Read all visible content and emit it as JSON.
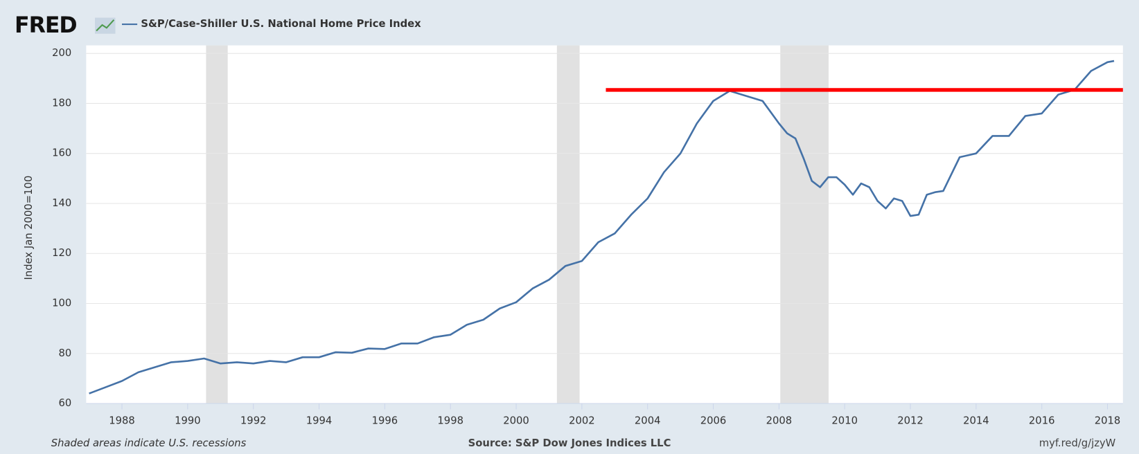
{
  "chart_data": {
    "type": "line",
    "logo": "FRED",
    "y_label": "Index Jan 2000=100",
    "footer_left": "Shaded areas indicate U.S. recessions",
    "source": "Source: S&P Dow Jones Indices LLC",
    "link": "myf.red/g/jzyW",
    "xlim": [
      1986.91,
      2018.47
    ],
    "xticks": [
      1988,
      1990,
      1992,
      1994,
      1996,
      1998,
      2000,
      2002,
      2004,
      2006,
      2008,
      2010,
      2012,
      2014,
      2016,
      2018
    ],
    "ylim": [
      60,
      200
    ],
    "yticks": [
      60,
      80,
      100,
      120,
      140,
      160,
      180,
      200
    ],
    "grid": true,
    "recession_color": "#e1e1e1",
    "recessions": [
      {
        "start": 1990.56,
        "end": 1991.22
      },
      {
        "start": 2001.24,
        "end": 2001.93
      },
      {
        "start": 2008.04,
        "end": 2009.51
      }
    ],
    "reference_line": {
      "value": 185.4,
      "x_start": 2002.73,
      "x_end": 2018.47,
      "color": "#ff0000"
    },
    "series": [
      {
        "name": "S&P/Case-Shiller U.S. National Home Price Index",
        "color": "#4572a7",
        "x": [
          1987.0,
          1987.5,
          1988.0,
          1988.5,
          1989.0,
          1989.5,
          1990.0,
          1990.5,
          1991.0,
          1991.5,
          1992.0,
          1992.5,
          1993.0,
          1993.5,
          1994.0,
          1994.5,
          1995.0,
          1995.5,
          1996.0,
          1996.5,
          1997.0,
          1997.5,
          1998.0,
          1998.5,
          1999.0,
          1999.5,
          2000.0,
          2000.5,
          2001.0,
          2001.5,
          2002.0,
          2002.5,
          2003.0,
          2003.5,
          2004.0,
          2004.5,
          2005.0,
          2005.5,
          2006.0,
          2006.5,
          2007.0,
          2007.5,
          2008.0,
          2008.25,
          2008.5,
          2008.75,
          2009.0,
          2009.25,
          2009.5,
          2009.75,
          2010.0,
          2010.25,
          2010.5,
          2010.75,
          2011.0,
          2011.25,
          2011.5,
          2011.75,
          2012.0,
          2012.25,
          2012.5,
          2012.75,
          2013.0,
          2013.5,
          2014.0,
          2014.5,
          2015.0,
          2015.5,
          2016.0,
          2016.5,
          2017.0,
          2017.5,
          2018.0,
          2018.2
        ],
        "values": [
          64,
          66.5,
          69,
          72.5,
          74.5,
          76.5,
          77,
          78,
          76,
          76.5,
          76,
          77,
          76.5,
          78.5,
          78.5,
          80.5,
          80.3,
          82,
          81.8,
          84,
          84,
          86.5,
          87.5,
          91.5,
          93.5,
          98,
          100.5,
          106,
          109.5,
          115,
          117,
          124.5,
          128,
          135.5,
          142,
          152.5,
          160,
          172,
          181,
          185,
          183,
          181,
          172,
          168,
          166,
          158,
          149,
          146.5,
          150.5,
          150.5,
          147.5,
          143.5,
          148,
          146.5,
          141,
          138,
          142,
          141,
          135,
          135.5,
          143.5,
          144.5,
          145,
          158.5,
          160,
          167,
          167,
          175,
          176,
          183.5,
          185.5,
          193,
          196.5,
          197
        ]
      }
    ]
  }
}
